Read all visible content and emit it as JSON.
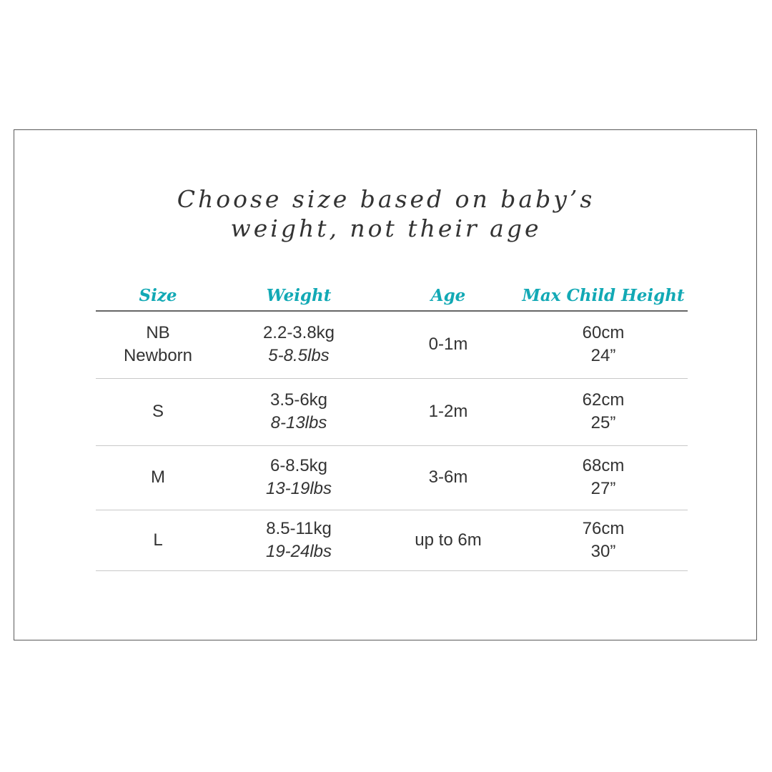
{
  "title": {
    "line1": "Choose size based on baby’s",
    "line2": "weight, not their age"
  },
  "colors": {
    "accent": "#12a9b5",
    "text": "#333333"
  },
  "table": {
    "headers": [
      "Size",
      "Weight",
      "Age",
      "Max Child Height"
    ],
    "rows": [
      {
        "size": "NB",
        "size_sub": "Newborn",
        "weight_kg": "2.2-3.8kg",
        "weight_lbs": "5-8.5lbs",
        "age": "0-1m",
        "height_cm": "60cm",
        "height_in": "24”"
      },
      {
        "size": "S",
        "size_sub": "",
        "weight_kg": "3.5-6kg",
        "weight_lbs": "8-13lbs",
        "age": "1-2m",
        "height_cm": "62cm",
        "height_in": "25”"
      },
      {
        "size": "M",
        "size_sub": "",
        "weight_kg": "6-8.5kg",
        "weight_lbs": "13-19lbs",
        "age": "3-6m",
        "height_cm": "68cm",
        "height_in": "27”"
      },
      {
        "size": "L",
        "size_sub": "",
        "weight_kg": "8.5-11kg",
        "weight_lbs": "19-24lbs",
        "age": "up to 6m",
        "height_cm": "76cm",
        "height_in": "30”"
      }
    ]
  }
}
